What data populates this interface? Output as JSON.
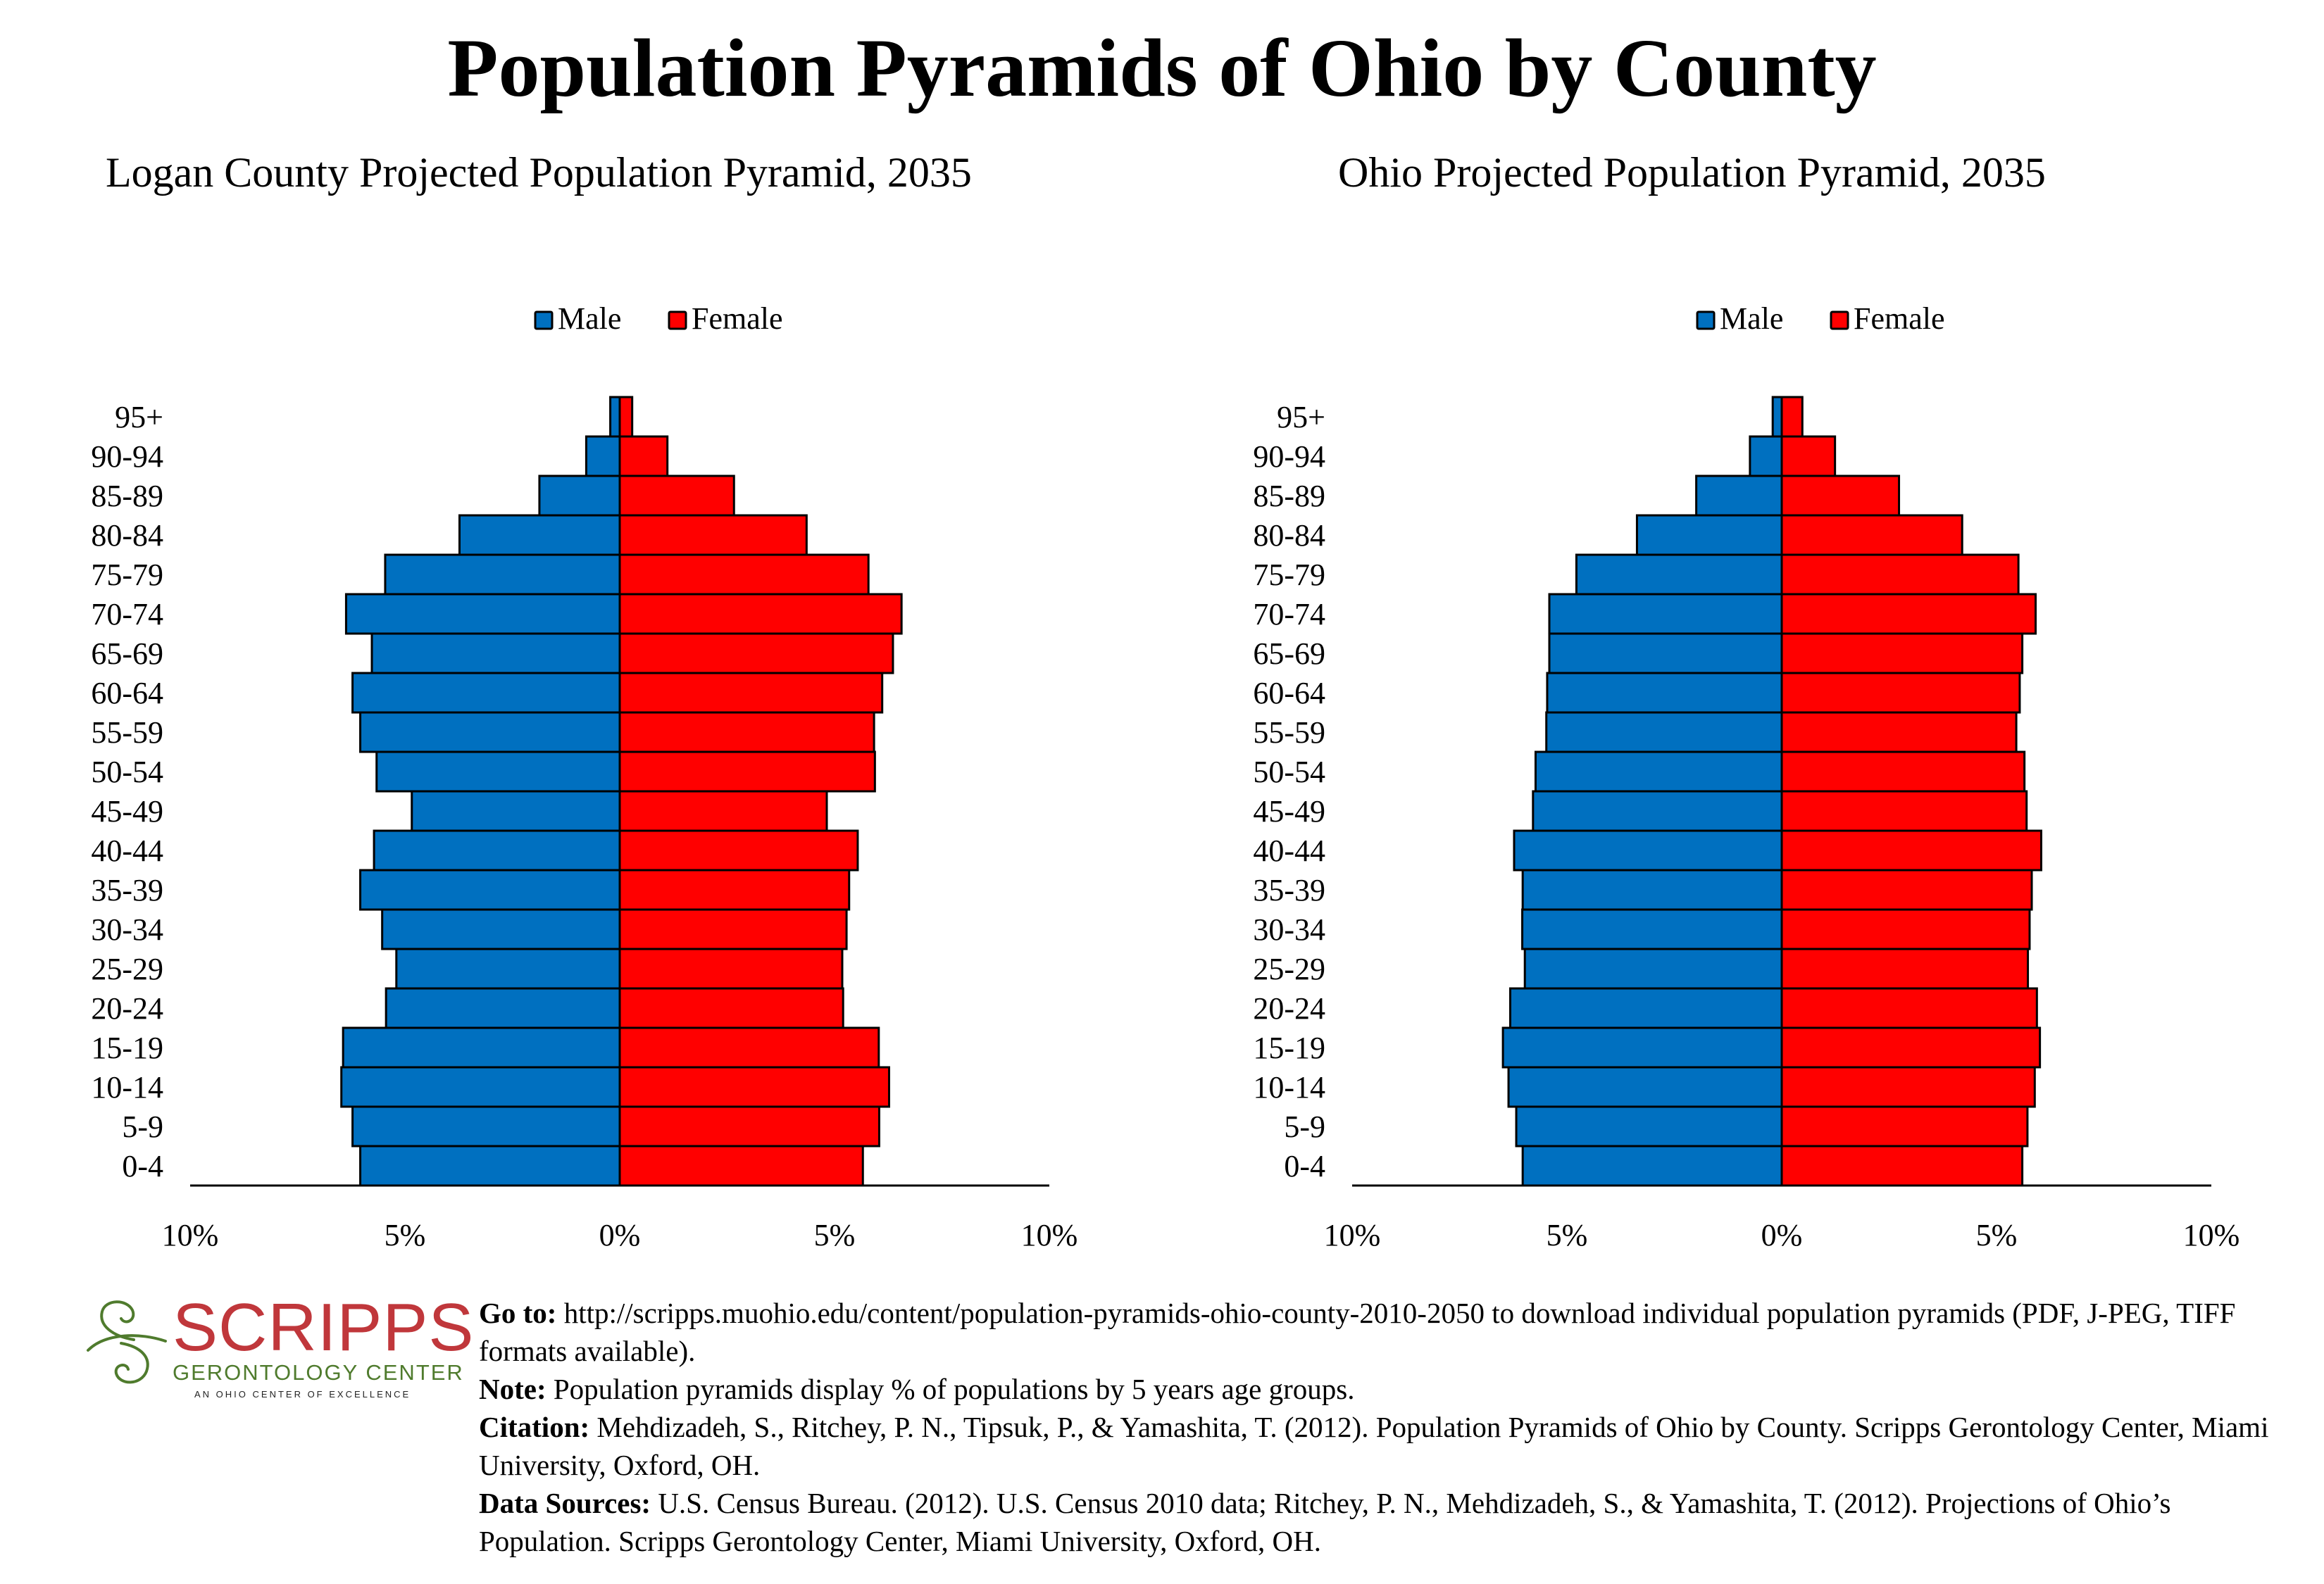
{
  "title": "Population Pyramids of Ohio by County",
  "colors": {
    "male": "#0070C0",
    "female": "#FF0000",
    "logo_red": "#C0373B",
    "logo_green": "#4F7B2D"
  },
  "chart_data": [
    {
      "type": "bar",
      "orientation": "horizontal-pyramid",
      "title": "Logan County Projected Population Pyramid, 2035",
      "xlabel": "",
      "ylabel": "",
      "xlim": [
        -10,
        10
      ],
      "x_ticks": [
        "10%",
        "5%",
        "0%",
        "5%",
        "10%"
      ],
      "legend": {
        "position": "top",
        "entries": [
          "Male",
          "Female"
        ]
      },
      "grid": false,
      "categories": [
        "95+",
        "90-94",
        "85-89",
        "80-84",
        "75-79",
        "70-74",
        "65-69",
        "60-64",
        "55-59",
        "50-54",
        "45-49",
        "40-44",
        "35-39",
        "30-34",
        "25-29",
        "20-24",
        "15-19",
        "10-14",
        "5-9",
        "0-4"
      ],
      "series": [
        {
          "name": "Male",
          "values": [
            0.22,
            0.78,
            1.87,
            3.73,
            5.46,
            6.37,
            5.77,
            6.22,
            6.04,
            5.66,
            4.84,
            5.72,
            6.04,
            5.53,
            5.2,
            5.44,
            6.44,
            6.48,
            6.22,
            6.04
          ]
        },
        {
          "name": "Female",
          "values": [
            0.29,
            1.11,
            2.66,
            4.35,
            5.79,
            6.56,
            6.36,
            6.11,
            5.92,
            5.94,
            4.82,
            5.54,
            5.34,
            5.28,
            5.18,
            5.2,
            6.03,
            6.27,
            6.04,
            5.66
          ]
        }
      ]
    },
    {
      "type": "bar",
      "orientation": "horizontal-pyramid",
      "title": "Ohio Projected Population Pyramid, 2035",
      "xlabel": "",
      "ylabel": "",
      "xlim": [
        -10,
        10
      ],
      "x_ticks": [
        "10%",
        "5%",
        "0%",
        "5%",
        "10%"
      ],
      "legend": {
        "position": "top",
        "entries": [
          "Male",
          "Female"
        ]
      },
      "grid": false,
      "categories": [
        "95+",
        "90-94",
        "85-89",
        "80-84",
        "75-79",
        "70-74",
        "65-69",
        "60-64",
        "55-59",
        "50-54",
        "45-49",
        "40-44",
        "35-39",
        "30-34",
        "25-29",
        "20-24",
        "15-19",
        "10-14",
        "5-9",
        "0-4"
      ],
      "series": [
        {
          "name": "Male",
          "values": [
            0.21,
            0.74,
            1.99,
            3.37,
            4.78,
            5.41,
            5.41,
            5.46,
            5.48,
            5.73,
            5.79,
            6.23,
            6.03,
            6.04,
            5.98,
            6.32,
            6.49,
            6.36,
            6.18,
            6.03
          ]
        },
        {
          "name": "Female",
          "values": [
            0.48,
            1.24,
            2.73,
            4.2,
            5.51,
            5.91,
            5.6,
            5.54,
            5.46,
            5.65,
            5.7,
            6.04,
            5.82,
            5.77,
            5.73,
            5.94,
            6.01,
            5.89,
            5.72,
            5.6
          ]
        }
      ]
    }
  ],
  "logo": {
    "word": "SCRIPPS",
    "sub": "GERONTOLOGY CENTER",
    "tagline": "AN OHIO CENTER OF EXCELLENCE",
    "icon": "swirl-icon"
  },
  "footer": {
    "goto_label": "Go to:",
    "goto_text": "http://scripps.muohio.edu/content/population-pyramids-ohio-county-2010-2050 to download individual population pyramids (PDF, J-PEG, TIFF formats available).",
    "note_label": "Note:",
    "note_text": "Population pyramids display % of populations by 5 years age groups.",
    "citation_label": "Citation:",
    "citation_text": "Mehdizadeh, S., Ritchey, P. N., Tipsuk, P., & Yamashita, T. (2012). Population Pyramids of Ohio by County. Scripps Gerontology Center, Miami University, Oxford, OH.",
    "sources_label": "Data Sources:",
    "sources_text": "U.S. Census Bureau. (2012). U.S. Census 2010 data; Ritchey, P. N., Mehdizadeh, S., & Yamashita, T. (2012). Projections of Ohio’s Population. Scripps Gerontology Center, Miami University, Oxford, OH."
  }
}
